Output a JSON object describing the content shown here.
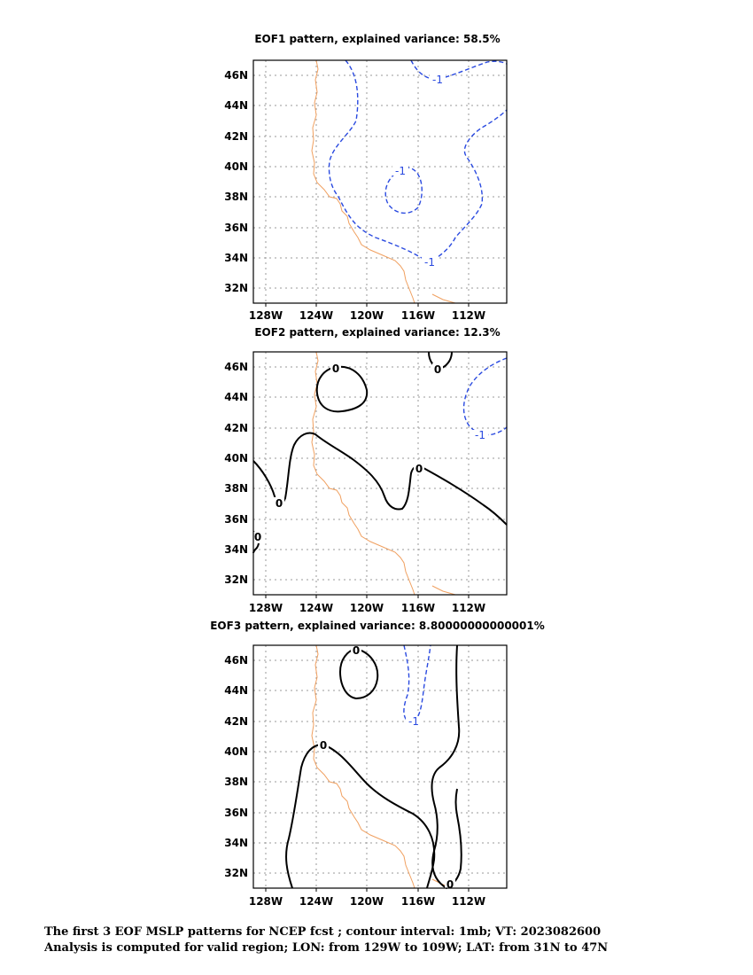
{
  "maps": [
    {
      "title": "EOF1 pattern, explained variance: 58.5%",
      "x_ticks": [
        "128W",
        "124W",
        "120W",
        "116W",
        "112W"
      ],
      "y_ticks": [
        "46N",
        "44N",
        "42N",
        "40N",
        "38N",
        "36N",
        "34N",
        "32N"
      ],
      "contour_labels": [
        {
          "text": "-1",
          "style": "negative"
        },
        {
          "text": "-1",
          "style": "negative"
        },
        {
          "text": "-1",
          "style": "negative"
        }
      ]
    },
    {
      "title": "EOF2 pattern, explained variance: 12.3%",
      "x_ticks": [
        "128W",
        "124W",
        "120W",
        "116W",
        "112W"
      ],
      "y_ticks": [
        "46N",
        "44N",
        "42N",
        "40N",
        "38N",
        "36N",
        "34N",
        "32N"
      ],
      "contour_labels": [
        {
          "text": "0",
          "style": "zero"
        },
        {
          "text": "0",
          "style": "zero"
        },
        {
          "text": "0",
          "style": "zero"
        },
        {
          "text": "0",
          "style": "zero"
        },
        {
          "text": "0",
          "style": "zero"
        },
        {
          "text": "-1",
          "style": "negative"
        }
      ]
    },
    {
      "title": "EOF3 pattern, explained variance: 8.80000000000001%",
      "x_ticks": [
        "128W",
        "124W",
        "120W",
        "116W",
        "112W"
      ],
      "y_ticks": [
        "46N",
        "44N",
        "42N",
        "40N",
        "38N",
        "36N",
        "34N",
        "32N"
      ],
      "contour_labels": [
        {
          "text": "0",
          "style": "zero"
        },
        {
          "text": "0",
          "style": "zero"
        },
        {
          "text": "0",
          "style": "zero"
        },
        {
          "text": "-1",
          "style": "negative"
        }
      ]
    }
  ],
  "caption": {
    "line1": "The first 3 EOF MSLP patterns for NCEP fcst ; contour interval: 1mb; VT: 2023082600",
    "line2": "Analysis is computed for valid region; LON: from 129W to 109W; LAT: from 31N to 47N"
  },
  "colors": {
    "coastline": "#f0a060",
    "negative_contour": "#2a4ae0",
    "zero_contour": "#000000",
    "grid": "#9a9a9a"
  }
}
